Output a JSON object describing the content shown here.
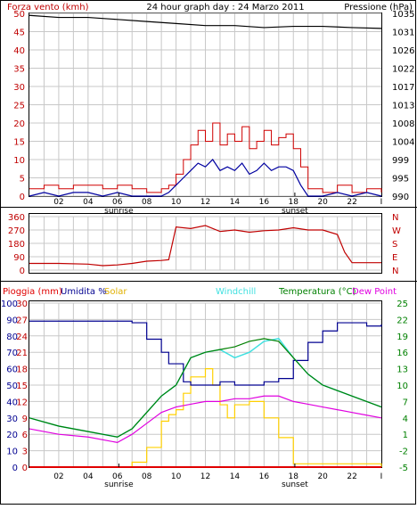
{
  "header": {
    "wind_label": "Forza vento (kmh)",
    "title": "24 hour graph day : 24 Marzo 2011",
    "pressure_label": "Pressione (hPa)"
  },
  "colors": {
    "wind": "#d00000",
    "wind_avg": "#0000a0",
    "pressure": "#000000",
    "direction": "#c00000",
    "rain": "#e00000",
    "humidity": "#000090",
    "solar": "#ffd000",
    "windchill": "#40e0e0",
    "temperature": "#008000",
    "dewpoint": "#e000e0",
    "grid": "#c8c8c8",
    "left_axis": "#c00000",
    "right_axis": "#008000"
  },
  "time_axis": {
    "ticks": [
      "02",
      "04",
      "06",
      "08",
      "10",
      "12",
      "14",
      "16",
      "18",
      "20",
      "22",
      "I"
    ],
    "sunrise_label": "sunrise",
    "sunset_label": "sunset",
    "sunrise_hour": 6.1,
    "sunset_hour": 18.1
  },
  "chart_data": [
    {
      "type": "line",
      "title": "24 hour graph day : 24 Marzo 2011",
      "xlabel": "",
      "ylabel": "Forza vento (kmh)",
      "y2label": "Pressione (hPa)",
      "ylim": [
        0,
        50
      ],
      "y_ticks": [
        "0",
        "5",
        "10",
        "15",
        "20",
        "25",
        "30",
        "35",
        "40",
        "45",
        "50"
      ],
      "y2lim": [
        990,
        1035
      ],
      "y2_ticks": [
        "990",
        "995",
        "999",
        "1004",
        "1008",
        "1013",
        "1017",
        "1022",
        "1026",
        "1031",
        "1035"
      ],
      "grid": true,
      "series": [
        {
          "axis": "y2",
          "x": [
            0,
            2,
            4,
            6,
            8,
            10,
            12,
            14,
            16,
            18,
            20,
            22,
            24
          ],
          "values": [
            1034.5,
            1034,
            1034,
            1033.5,
            1033,
            1032.5,
            1032,
            1032,
            1031.5,
            1031.8,
            1031.8,
            1031.5,
            1031.3
          ]
        },
        {
          "x": [
            0,
            1,
            2,
            3,
            4,
            5,
            6,
            7,
            8,
            9,
            9.5,
            10,
            10.5,
            11,
            11.5,
            12,
            12.5,
            13,
            13.5,
            14,
            14.5,
            15,
            15.5,
            16,
            16.5,
            17,
            17.5,
            18,
            18.5,
            19,
            20,
            21,
            22,
            23,
            24
          ],
          "values": [
            2,
            3,
            2,
            3,
            3,
            2,
            3,
            2,
            1,
            2,
            3,
            6,
            10,
            14,
            18,
            15,
            20,
            14,
            17,
            15,
            19,
            13,
            15,
            18,
            14,
            16,
            17,
            13,
            8,
            2,
            1,
            3,
            1,
            2,
            1
          ]
        },
        {
          "x": [
            0,
            1,
            2,
            3,
            4,
            5,
            6,
            7,
            8,
            9,
            9.5,
            10,
            10.5,
            11,
            11.5,
            12,
            12.5,
            13,
            13.5,
            14,
            14.5,
            15,
            15.5,
            16,
            16.5,
            17,
            17.5,
            18,
            18.5,
            19,
            20,
            21,
            22,
            23,
            24
          ],
          "values": [
            0,
            1,
            0,
            1,
            1,
            0,
            1,
            0,
            0,
            0,
            1,
            3,
            5,
            7,
            9,
            8,
            10,
            7,
            8,
            7,
            9,
            6,
            7,
            9,
            7,
            8,
            8,
            7,
            3,
            0,
            0,
            1,
            0,
            1,
            0
          ]
        }
      ]
    },
    {
      "type": "line",
      "ylabel": "",
      "ylim": [
        0,
        360
      ],
      "y_ticks": [
        "0",
        "90",
        "180",
        "270",
        "360"
      ],
      "y2_ticks": [
        "N",
        "E",
        "S",
        "W",
        "N"
      ],
      "grid": true,
      "series": [
        {
          "x": [
            0,
            2,
            4,
            5,
            6,
            7,
            8,
            9,
            9.5,
            10,
            11,
            12,
            13,
            14,
            15,
            16,
            17,
            18,
            19,
            20,
            21,
            21.5,
            22,
            23,
            24
          ],
          "values": [
            45,
            45,
            40,
            30,
            35,
            45,
            60,
            65,
            70,
            290,
            280,
            300,
            260,
            270,
            255,
            265,
            270,
            285,
            270,
            270,
            240,
            120,
            50,
            50,
            50
          ]
        }
      ]
    },
    {
      "type": "line",
      "xlabel": "",
      "legend": [
        "Pioggia (mm)",
        "Umidita %",
        "Solar",
        "Windchill",
        "Temperatura (°C)",
        "Dew Point"
      ],
      "ylim": [
        0,
        100
      ],
      "y_ticks": [
        "0",
        "10",
        "20",
        "30",
        "40",
        "50",
        "60",
        "70",
        "80",
        "90",
        "100"
      ],
      "y_ticks_inner": [
        "0",
        "3",
        "6",
        "9",
        "12",
        "15",
        "18",
        "21",
        "24",
        "27",
        "30"
      ],
      "y2lim": [
        -5,
        25
      ],
      "y2_ticks": [
        "-5",
        "-2",
        "1",
        "4",
        "7",
        "10",
        "13",
        "16",
        "19",
        "22",
        "25"
      ],
      "grid": true,
      "series": [
        {
          "name": "Pioggia (mm)",
          "x": [
            0,
            24
          ],
          "values": [
            0,
            0
          ]
        },
        {
          "name": "Umidita %",
          "x": [
            0,
            2,
            4,
            6,
            7,
            8,
            9,
            9.5,
            10,
            10.5,
            11,
            12,
            13,
            14,
            15,
            16,
            17,
            18,
            19,
            20,
            21,
            22,
            23,
            24
          ],
          "values": [
            89,
            89,
            89,
            89,
            88,
            78,
            70,
            63,
            63,
            52,
            50,
            50,
            52,
            50,
            50,
            52,
            54,
            65,
            76,
            83,
            88,
            88,
            86,
            87
          ]
        },
        {
          "name": "Solar",
          "x": [
            0,
            6,
            7,
            8,
            9,
            9.5,
            10,
            10.5,
            11,
            12,
            12.5,
            13,
            13.5,
            14,
            15,
            16,
            17,
            18,
            24
          ],
          "values": [
            0,
            0,
            3,
            12,
            28,
            32,
            35,
            45,
            55,
            60,
            50,
            38,
            30,
            38,
            40,
            30,
            18,
            2,
            0
          ]
        },
        {
          "name": "Windchill",
          "x": [
            0,
            2,
            4,
            6,
            7,
            8,
            9,
            10,
            11,
            12,
            13,
            14,
            15,
            16,
            17,
            18,
            19,
            20,
            21,
            22,
            23,
            24
          ],
          "values": [
            4,
            2.5,
            1.5,
            0.5,
            2,
            5,
            8,
            10,
            15,
            16,
            16.5,
            15,
            16,
            18,
            18.5,
            15,
            12,
            10,
            9,
            8,
            7,
            6
          ]
        },
        {
          "name": "Temperatura (°C)",
          "x": [
            0,
            2,
            4,
            6,
            7,
            8,
            9,
            10,
            11,
            12,
            13,
            14,
            15,
            16,
            17,
            18,
            19,
            20,
            21,
            22,
            23,
            24
          ],
          "values": [
            4,
            2.5,
            1.5,
            0.5,
            2,
            5,
            8,
            10,
            15,
            16,
            16.5,
            17,
            18,
            18.5,
            18,
            15,
            12,
            10,
            9,
            8,
            7,
            6
          ]
        },
        {
          "name": "Dew Point",
          "x": [
            0,
            2,
            4,
            6,
            7,
            8,
            9,
            10,
            11,
            12,
            13,
            14,
            15,
            16,
            17,
            18,
            19,
            20,
            21,
            22,
            23,
            24
          ],
          "values": [
            2,
            1,
            0.5,
            -0.5,
            1,
            3,
            5,
            6,
            6.5,
            7,
            7,
            7.5,
            7.5,
            8,
            8,
            7,
            6.5,
            6,
            5.5,
            5,
            4.5,
            4
          ]
        }
      ]
    }
  ]
}
